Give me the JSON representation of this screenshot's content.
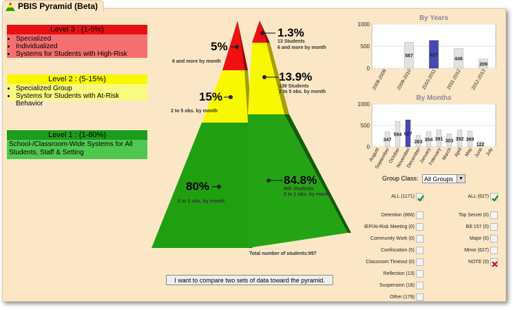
{
  "app": {
    "title": "PBIS Pyramid (Beta)"
  },
  "levels": [
    {
      "title": "Level 3 : (1-5%)",
      "items": [
        "Specialized",
        "Individualized",
        "Systems for Students with High-Risk"
      ]
    },
    {
      "title": "Level 2 : (5-15%)",
      "items": [
        "Specialized Group",
        "Systems for Students with At-Risk Behavior"
      ]
    },
    {
      "title": "Level 1 : (1-80%)",
      "body": "School-/Classroom-Wide Systems for All Students, Staff & Setting"
    }
  ],
  "pyramid_left": [
    {
      "pct": "5%",
      "caption": "6 and more by month"
    },
    {
      "pct": "15%",
      "caption": "2 to 5 obs. by month"
    },
    {
      "pct": "80%",
      "caption": "0 to 1 obs. by month"
    }
  ],
  "pyramid_right": [
    {
      "pct": "1.3%",
      "students": "13 Students",
      "caption": "6 and more by month"
    },
    {
      "pct": "13.9%",
      "students": "139 Students",
      "caption": "2 to 5 obs. by month"
    },
    {
      "pct": "84.8%",
      "students": "845 Students",
      "caption": "0 to 1 obs. by month"
    }
  ],
  "total_students": "Total number of students:997",
  "compare_button": "I want to compare two sets of data toward the pyramid.",
  "colors": {
    "red": "#e81010",
    "yellow": "#f8f800",
    "green": "#20a010",
    "highlight": "#4848b8"
  },
  "chart_data": [
    {
      "type": "bar",
      "title": "By Years",
      "categories": [
        "2008-2009",
        "2009-2010",
        "2010-2011",
        "2011-2012",
        "2012-2013"
      ],
      "values": [
        0,
        587,
        627,
        446,
        209
      ],
      "ylim": [
        0,
        1000
      ],
      "yticks": [
        "1000",
        "500",
        "0"
      ],
      "highlight_index": 2,
      "grid": true
    },
    {
      "type": "bar",
      "title": "By Months",
      "categories": [
        "August",
        "September",
        "October",
        "November",
        "December",
        "January",
        "February",
        "March",
        "April",
        "May",
        "June",
        "July"
      ],
      "values": [
        0,
        347,
        594,
        627,
        263,
        354,
        391,
        303,
        392,
        369,
        122,
        0
      ],
      "labels": [
        "",
        "347",
        "594",
        "627",
        "263",
        "354",
        "391",
        "303",
        "392",
        "369",
        "122",
        ""
      ],
      "ylim": [
        0,
        1000
      ],
      "yticks": [
        "1000",
        "500",
        "0"
      ],
      "highlight_index": 3,
      "grid": true
    }
  ],
  "group_class": {
    "label": "Group Class:",
    "selected": "All Groups"
  },
  "filters_left": [
    {
      "label": "ALL (1171)",
      "state": "checked"
    },
    {
      "label": "Detention (866)",
      "state": "empty"
    },
    {
      "label": "IEP/At-Risk Meeting (0)",
      "state": "empty"
    },
    {
      "label": "Community Work (0)",
      "state": "empty"
    },
    {
      "label": "Confiscation (5)",
      "state": "empty"
    },
    {
      "label": "Classroom Timeout (0)",
      "state": "empty"
    },
    {
      "label": "Reflection (13)",
      "state": "empty"
    },
    {
      "label": "Suspension (18)",
      "state": "empty"
    },
    {
      "label": "Other (179)",
      "state": "empty"
    }
  ],
  "filters_right": [
    {
      "label": "ALL (627)",
      "state": "checked"
    },
    {
      "label": "Top Secret (0)",
      "state": "empty"
    },
    {
      "label": "Bill 157 (0)",
      "state": "empty"
    },
    {
      "label": "Major (0)",
      "state": "empty"
    },
    {
      "label": "Minor (627)",
      "state": "empty"
    },
    {
      "label": "NOTE (0)",
      "state": "excluded"
    }
  ]
}
